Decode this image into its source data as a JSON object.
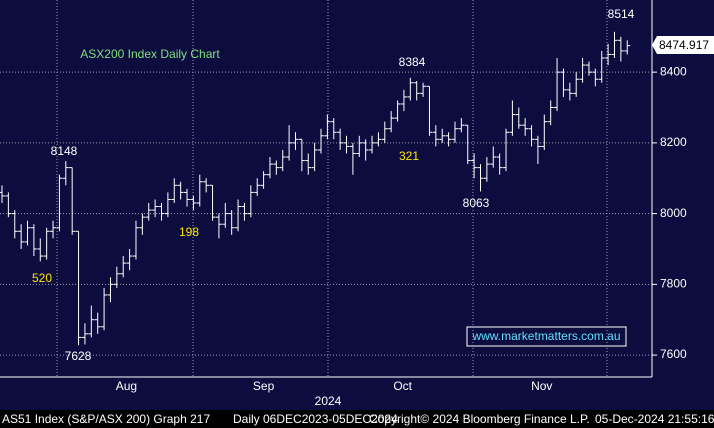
{
  "chart_data": {
    "type": "ohlc",
    "title": "ASX200 Index Daily Chart",
    "watermark": "www.marketmatters.com.au",
    "ylim": [
      7538,
      8604
    ],
    "yticks": [
      7600,
      7800,
      8000,
      8200,
      8400
    ],
    "grid": true,
    "xticks": [
      {
        "value": 19.5,
        "label": "Aug"
      },
      {
        "value": 41,
        "label": "Sep"
      },
      {
        "value": 62.8,
        "label": "Oct"
      },
      {
        "value": 84.6,
        "label": "Nov"
      }
    ],
    "year_label": "2024",
    "peak_labels": [
      8148,
      7628,
      8384,
      8063,
      8514
    ],
    "move_labels": [
      520,
      198,
      321
    ],
    "color": "#ffffff",
    "ohlc": [
      [
        8060,
        8080,
        8030,
        8050
      ],
      [
        8050,
        8060,
        7990,
        8000
      ],
      [
        8000,
        8010,
        7930,
        7950
      ],
      [
        7950,
        7970,
        7900,
        7920
      ],
      [
        7920,
        7980,
        7910,
        7960
      ],
      [
        7960,
        7970,
        7880,
        7900
      ],
      [
        7900,
        7930,
        7865,
        7880
      ],
      [
        7880,
        7960,
        7870,
        7950
      ],
      [
        7950,
        7980,
        7930,
        7960
      ],
      [
        7960,
        8110,
        7950,
        8100
      ],
      [
        8100,
        8148,
        8080,
        8130
      ],
      [
        8130,
        8130,
        7940,
        7950
      ],
      [
        7950,
        7950,
        7628,
        7650
      ],
      [
        7650,
        7690,
        7630,
        7660
      ],
      [
        7660,
        7740,
        7650,
        7700
      ],
      [
        7700,
        7720,
        7660,
        7680
      ],
      [
        7680,
        7790,
        7670,
        7770
      ],
      [
        7770,
        7820,
        7750,
        7800
      ],
      [
        7800,
        7850,
        7790,
        7830
      ],
      [
        7830,
        7880,
        7820,
        7860
      ],
      [
        7860,
        7900,
        7840,
        7880
      ],
      [
        7880,
        7980,
        7870,
        7960
      ],
      [
        7960,
        8000,
        7940,
        7990
      ],
      [
        7990,
        8030,
        7980,
        8010
      ],
      [
        8010,
        8040,
        7990,
        8020
      ],
      [
        8020,
        8030,
        7980,
        8000
      ],
      [
        8000,
        8060,
        7990,
        8040
      ],
      [
        8040,
        8100,
        8030,
        8080
      ],
      [
        8080,
        8090,
        8040,
        8060
      ],
      [
        8060,
        8070,
        8020,
        8040
      ],
      [
        8040,
        8050,
        8010,
        8030
      ],
      [
        8030,
        8110,
        8020,
        8090
      ],
      [
        8090,
        8100,
        8060,
        8080
      ],
      [
        8080,
        8080,
        7980,
        7990
      ],
      [
        7990,
        8000,
        7930,
        7970
      ],
      [
        7970,
        8030,
        7960,
        8000
      ],
      [
        8000,
        8010,
        7940,
        7960
      ],
      [
        7960,
        8040,
        7950,
        8020
      ],
      [
        8020,
        8030,
        7980,
        8000
      ],
      [
        8000,
        8080,
        7990,
        8060
      ],
      [
        8060,
        8100,
        8050,
        8080
      ],
      [
        8080,
        8120,
        8070,
        8110
      ],
      [
        8110,
        8160,
        8100,
        8140
      ],
      [
        8140,
        8150,
        8110,
        8130
      ],
      [
        8130,
        8180,
        8120,
        8160
      ],
      [
        8160,
        8250,
        8150,
        8200
      ],
      [
        8200,
        8230,
        8180,
        8210
      ],
      [
        8210,
        8210,
        8120,
        8150
      ],
      [
        8150,
        8170,
        8110,
        8130
      ],
      [
        8130,
        8200,
        8120,
        8180
      ],
      [
        8180,
        8240,
        8170,
        8220
      ],
      [
        8220,
        8280,
        8210,
        8260
      ],
      [
        8260,
        8270,
        8210,
        8230
      ],
      [
        8230,
        8240,
        8180,
        8200
      ],
      [
        8200,
        8220,
        8170,
        8190
      ],
      [
        8190,
        8200,
        8110,
        8170
      ],
      [
        8170,
        8220,
        8160,
        8200
      ],
      [
        8200,
        8210,
        8150,
        8180
      ],
      [
        8180,
        8220,
        8170,
        8200
      ],
      [
        8200,
        8230,
        8190,
        8210
      ],
      [
        8210,
        8260,
        8200,
        8240
      ],
      [
        8240,
        8290,
        8230,
        8270
      ],
      [
        8270,
        8320,
        8260,
        8310
      ],
      [
        8310,
        8350,
        8290,
        8330
      ],
      [
        8330,
        8384,
        8320,
        8370
      ],
      [
        8370,
        8375,
        8320,
        8340
      ],
      [
        8340,
        8370,
        8330,
        8360
      ],
      [
        8360,
        8360,
        8220,
        8230
      ],
      [
        8230,
        8250,
        8190,
        8210
      ],
      [
        8210,
        8240,
        8200,
        8220
      ],
      [
        8220,
        8230,
        8190,
        8210
      ],
      [
        8210,
        8260,
        8200,
        8240
      ],
      [
        8240,
        8270,
        8230,
        8250
      ],
      [
        8250,
        8250,
        8140,
        8150
      ],
      [
        8150,
        8170,
        8100,
        8130
      ],
      [
        8130,
        8140,
        8063,
        8100
      ],
      [
        8100,
        8160,
        8090,
        8140
      ],
      [
        8140,
        8190,
        8130,
        8160
      ],
      [
        8160,
        8170,
        8110,
        8130
      ],
      [
        8130,
        8240,
        8120,
        8230
      ],
      [
        8230,
        8320,
        8220,
        8280
      ],
      [
        8280,
        8300,
        8240,
        8250
      ],
      [
        8250,
        8270,
        8220,
        8240
      ],
      [
        8240,
        8250,
        8190,
        8210
      ],
      [
        8210,
        8220,
        8140,
        8190
      ],
      [
        8190,
        8280,
        8180,
        8260
      ],
      [
        8260,
        8320,
        8250,
        8300
      ],
      [
        8300,
        8440,
        8290,
        8400
      ],
      [
        8400,
        8410,
        8330,
        8350
      ],
      [
        8350,
        8370,
        8320,
        8340
      ],
      [
        8340,
        8400,
        8330,
        8380
      ],
      [
        8380,
        8440,
        8370,
        8420
      ],
      [
        8420,
        8430,
        8390,
        8400
      ],
      [
        8400,
        8410,
        8360,
        8380
      ],
      [
        8380,
        8460,
        8370,
        8440
      ],
      [
        8440,
        8480,
        8420,
        8450
      ],
      [
        8450,
        8514,
        8440,
        8490
      ],
      [
        8490,
        8500,
        8430,
        8460
      ],
      [
        8460,
        8490,
        8450,
        8474.917
      ]
    ],
    "footer": [
      "AS51 Index (S&P/ASX 200) Graph 217",
      "Daily 06DEC2023-05DEC2024",
      "Copyright© 2024 Bloomberg Finance L.P.",
      "05-Dec-2024 21:55:16"
    ]
  }
}
